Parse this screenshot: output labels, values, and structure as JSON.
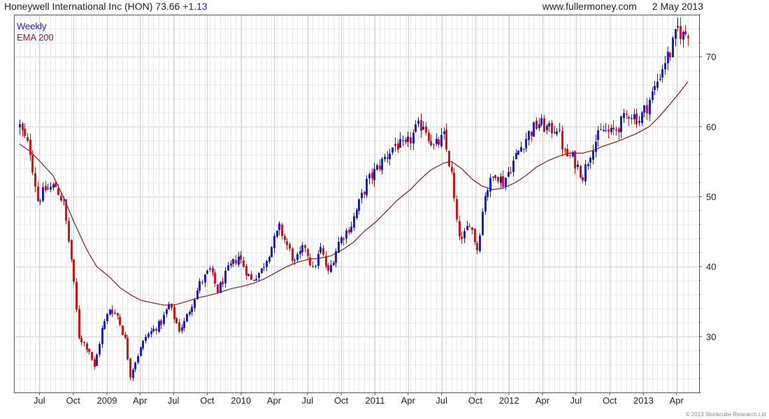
{
  "header": {
    "title": "Honeywell International Inc (HON)",
    "price": "73.66",
    "change": "+1.13",
    "source": "www.fullermoney.com",
    "date": "2 May 2013"
  },
  "copyright": "© 2013 Stockcube Research Ltd",
  "colors": {
    "up": "#1a1ae6",
    "down": "#e01010",
    "ema": "#8b1a1a",
    "grid": "#cfcfcf",
    "frame": "#555555"
  },
  "chart_data": {
    "type": "candlestick",
    "series": [
      {
        "name": "Weekly",
        "color": "#1a1ae6"
      },
      {
        "name": "EMA 200",
        "color": "#8b1a1a"
      }
    ],
    "legend_position": "top-left",
    "grid": true,
    "y_axis_side": "right",
    "ylim": [
      22,
      76
    ],
    "y_ticks": [
      30,
      40,
      50,
      60,
      70
    ],
    "x_range": [
      "2008-05-08",
      "2013-05-02"
    ],
    "x_ticks": [
      {
        "label": "Jul",
        "date": "2008-07-01"
      },
      {
        "label": "Oct",
        "date": "2008-10-01"
      },
      {
        "label": "2009",
        "date": "2009-01-01"
      },
      {
        "label": "Apr",
        "date": "2009-04-01"
      },
      {
        "label": "Jul",
        "date": "2009-07-01"
      },
      {
        "label": "Oct",
        "date": "2009-10-01"
      },
      {
        "label": "2010",
        "date": "2010-01-01"
      },
      {
        "label": "Apr",
        "date": "2010-04-01"
      },
      {
        "label": "Jul",
        "date": "2010-07-01"
      },
      {
        "label": "Oct",
        "date": "2010-10-01"
      },
      {
        "label": "2011",
        "date": "2011-01-01"
      },
      {
        "label": "Apr",
        "date": "2011-04-01"
      },
      {
        "label": "Jul",
        "date": "2011-07-01"
      },
      {
        "label": "Oct",
        "date": "2011-10-01"
      },
      {
        "label": "2012",
        "date": "2012-01-01"
      },
      {
        "label": "Apr",
        "date": "2012-04-01"
      },
      {
        "label": "Jul",
        "date": "2012-07-01"
      },
      {
        "label": "Oct",
        "date": "2012-10-01"
      },
      {
        "label": "2013",
        "date": "2013-01-01"
      },
      {
        "label": "Apr",
        "date": "2013-04-01"
      }
    ],
    "close_path": [
      [
        "2008-05-08",
        60.0
      ],
      [
        "2008-06-05",
        56.5
      ],
      [
        "2008-06-26",
        49.5
      ],
      [
        "2008-07-17",
        51.0
      ],
      [
        "2008-08-14",
        51.5
      ],
      [
        "2008-09-04",
        49.0
      ],
      [
        "2008-09-25",
        41.0
      ],
      [
        "2008-10-16",
        30.0
      ],
      [
        "2008-11-13",
        28.0
      ],
      [
        "2008-11-27",
        25.5
      ],
      [
        "2008-12-18",
        31.0
      ],
      [
        "2009-01-08",
        34.0
      ],
      [
        "2009-01-29",
        33.0
      ],
      [
        "2009-02-19",
        29.5
      ],
      [
        "2009-03-05",
        24.5
      ],
      [
        "2009-03-19",
        26.5
      ],
      [
        "2009-04-16",
        30.0
      ],
      [
        "2009-05-28",
        32.0
      ],
      [
        "2009-06-18",
        34.5
      ],
      [
        "2009-07-16",
        31.0
      ],
      [
        "2009-07-30",
        32.0
      ],
      [
        "2009-09-10",
        37.5
      ],
      [
        "2009-10-08",
        39.5
      ],
      [
        "2009-10-29",
        36.5
      ],
      [
        "2009-11-26",
        39.5
      ],
      [
        "2009-12-24",
        41.5
      ],
      [
        "2010-01-28",
        38.0
      ],
      [
        "2010-02-25",
        39.5
      ],
      [
        "2010-04-15",
        45.5
      ],
      [
        "2010-05-06",
        43.0
      ],
      [
        "2010-05-27",
        40.5
      ],
      [
        "2010-06-24",
        43.0
      ],
      [
        "2010-07-15",
        39.5
      ],
      [
        "2010-08-05",
        42.5
      ],
      [
        "2010-08-26",
        39.0
      ],
      [
        "2010-09-23",
        43.5
      ],
      [
        "2010-10-28",
        46.0
      ],
      [
        "2010-12-09",
        52.0
      ],
      [
        "2011-01-27",
        55.5
      ],
      [
        "2011-02-24",
        57.5
      ],
      [
        "2011-03-24",
        57.0
      ],
      [
        "2011-04-21",
        59.5
      ],
      [
        "2011-05-12",
        60.5
      ],
      [
        "2011-06-09",
        57.0
      ],
      [
        "2011-07-07",
        58.5
      ],
      [
        "2011-07-28",
        53.0
      ],
      [
        "2011-08-11",
        46.0
      ],
      [
        "2011-08-25",
        43.5
      ],
      [
        "2011-09-15",
        46.5
      ],
      [
        "2011-10-06",
        42.5
      ],
      [
        "2011-10-27",
        50.5
      ],
      [
        "2011-11-24",
        53.5
      ],
      [
        "2011-12-15",
        52.0
      ],
      [
        "2012-01-26",
        56.5
      ],
      [
        "2012-02-23",
        59.0
      ],
      [
        "2012-03-22",
        60.5
      ],
      [
        "2012-04-19",
        59.5
      ],
      [
        "2012-05-10",
        60.0
      ],
      [
        "2012-05-31",
        56.0
      ],
      [
        "2012-06-21",
        55.5
      ],
      [
        "2012-07-19",
        53.0
      ],
      [
        "2012-08-16",
        57.5
      ],
      [
        "2012-09-13",
        59.5
      ],
      [
        "2012-10-04",
        59.0
      ],
      [
        "2012-11-01",
        60.5
      ],
      [
        "2012-11-22",
        62.0
      ],
      [
        "2012-12-20",
        61.0
      ],
      [
        "2013-01-10",
        63.0
      ],
      [
        "2013-01-31",
        65.5
      ],
      [
        "2013-02-28",
        69.5
      ],
      [
        "2013-03-14",
        70.5
      ],
      [
        "2013-04-04",
        74.0
      ],
      [
        "2013-04-18",
        73.0
      ],
      [
        "2013-05-02",
        73.66
      ]
    ],
    "ema_200": [
      [
        "2008-05-08",
        57.5
      ],
      [
        "2008-06-05",
        56.5
      ],
      [
        "2008-07-03",
        55.0
      ],
      [
        "2008-08-07",
        53.0
      ],
      [
        "2008-09-04",
        50.0
      ],
      [
        "2008-10-02",
        46.5
      ],
      [
        "2008-11-06",
        42.5
      ],
      [
        "2008-12-04",
        40.0
      ],
      [
        "2009-01-08",
        38.5
      ],
      [
        "2009-02-05",
        37.0
      ],
      [
        "2009-03-05",
        36.0
      ],
      [
        "2009-04-02",
        35.2
      ],
      [
        "2009-05-07",
        34.8
      ],
      [
        "2009-06-04",
        34.5
      ],
      [
        "2009-07-02",
        34.5
      ],
      [
        "2009-08-06",
        35.0
      ],
      [
        "2009-09-03",
        35.5
      ],
      [
        "2009-10-01",
        35.8
      ],
      [
        "2009-11-05",
        36.3
      ],
      [
        "2009-12-03",
        36.8
      ],
      [
        "2010-01-07",
        37.2
      ],
      [
        "2010-02-04",
        37.6
      ],
      [
        "2010-03-04",
        38.2
      ],
      [
        "2010-04-01",
        39.0
      ],
      [
        "2010-05-06",
        40.0
      ],
      [
        "2010-06-03",
        40.6
      ],
      [
        "2010-07-01",
        41.0
      ],
      [
        "2010-08-05",
        41.2
      ],
      [
        "2010-09-02",
        41.5
      ],
      [
        "2010-10-07",
        42.5
      ],
      [
        "2010-11-04",
        43.5
      ],
      [
        "2010-12-02",
        45.0
      ],
      [
        "2011-01-06",
        46.5
      ],
      [
        "2011-02-03",
        48.0
      ],
      [
        "2011-03-03",
        49.5
      ],
      [
        "2011-04-07",
        51.0
      ],
      [
        "2011-05-05",
        52.5
      ],
      [
        "2011-06-02",
        53.8
      ],
      [
        "2011-07-07",
        54.8
      ],
      [
        "2011-07-28",
        55.0
      ],
      [
        "2011-08-25",
        54.0
      ],
      [
        "2011-09-22",
        52.5
      ],
      [
        "2011-10-20",
        51.5
      ],
      [
        "2011-11-17",
        51.0
      ],
      [
        "2011-12-15",
        51.2
      ],
      [
        "2012-01-19",
        52.0
      ],
      [
        "2012-02-16",
        53.0
      ],
      [
        "2012-03-15",
        54.2
      ],
      [
        "2012-04-19",
        55.2
      ],
      [
        "2012-05-17",
        55.8
      ],
      [
        "2012-06-14",
        56.2
      ],
      [
        "2012-07-19",
        56.2
      ],
      [
        "2012-08-16",
        56.6
      ],
      [
        "2012-09-13",
        57.2
      ],
      [
        "2012-10-18",
        57.8
      ],
      [
        "2012-11-15",
        58.4
      ],
      [
        "2012-12-13",
        59.0
      ],
      [
        "2013-01-17",
        60.0
      ],
      [
        "2013-02-14",
        61.5
      ],
      [
        "2013-03-14",
        63.2
      ],
      [
        "2013-04-11",
        65.0
      ],
      [
        "2013-05-02",
        66.4
      ]
    ]
  }
}
